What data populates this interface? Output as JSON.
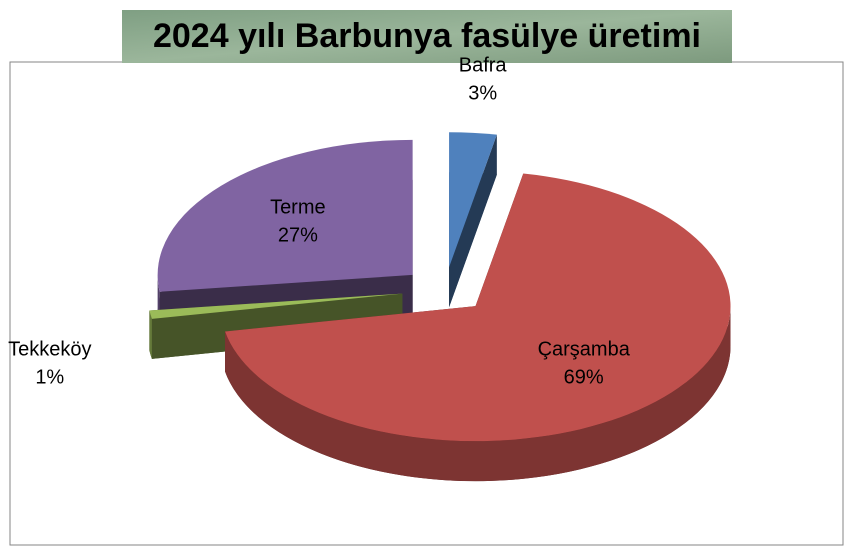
{
  "chart_data": {
    "type": "pie",
    "title": "2024 yılı Barbunya fasülye üretimi",
    "categories": [
      "Bafra",
      "Çarşamba",
      "Tekkeköy",
      "Terme"
    ],
    "values": [
      3,
      69,
      1,
      27
    ],
    "value_labels": [
      "3%",
      "69%",
      "1%",
      "27%"
    ],
    "colors": [
      "#4f81bd",
      "#c0504d",
      "#9bbb59",
      "#8064a2"
    ]
  }
}
